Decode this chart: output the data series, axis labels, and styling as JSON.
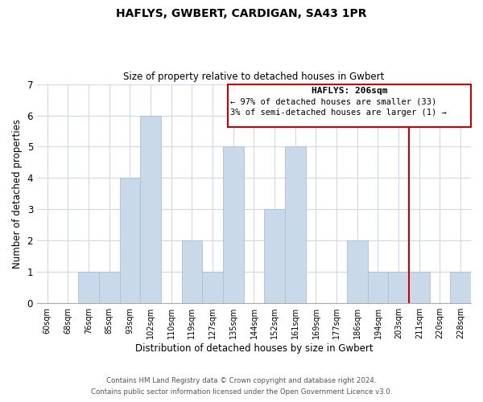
{
  "title": "HAFLYS, GWBERT, CARDIGAN, SA43 1PR",
  "subtitle": "Size of property relative to detached houses in Gwbert",
  "xlabel": "Distribution of detached houses by size in Gwbert",
  "ylabel": "Number of detached properties",
  "bar_labels": [
    "60sqm",
    "68sqm",
    "76sqm",
    "85sqm",
    "93sqm",
    "102sqm",
    "110sqm",
    "119sqm",
    "127sqm",
    "135sqm",
    "144sqm",
    "152sqm",
    "161sqm",
    "169sqm",
    "177sqm",
    "186sqm",
    "194sqm",
    "203sqm",
    "211sqm",
    "220sqm",
    "228sqm"
  ],
  "bar_values": [
    0,
    0,
    1,
    1,
    4,
    6,
    0,
    2,
    1,
    5,
    0,
    3,
    5,
    0,
    0,
    2,
    1,
    1,
    1,
    0,
    1
  ],
  "bar_color": "#c9d9ea",
  "bar_edgecolor": "#a8c0d8",
  "ylim": [
    0,
    7
  ],
  "yticks": [
    0,
    1,
    2,
    3,
    4,
    5,
    6,
    7
  ],
  "grid_color": "#d0d8e8",
  "annotation_title": "HAFLYS: 206sqm",
  "annotation_line1": "← 97% of detached houses are smaller (33)",
  "annotation_line2": "3% of semi-detached houses are larger (1) →",
  "vline_x": 17.5,
  "vline_color": "#cc0000",
  "footer_line1": "Contains HM Land Registry data © Crown copyright and database right 2024.",
  "footer_line2": "Contains public sector information licensed under the Open Government Licence v3.0.",
  "background_color": "#ffffff"
}
